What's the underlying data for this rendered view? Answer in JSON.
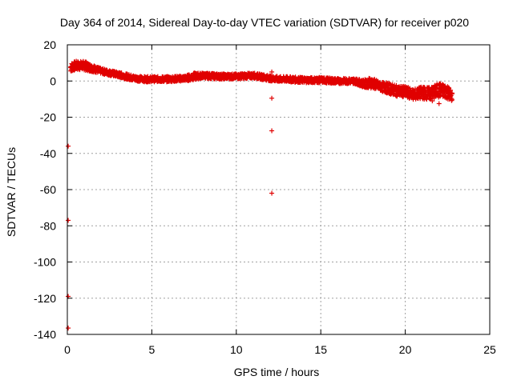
{
  "chart_data": {
    "type": "scatter",
    "title": "Day 364 of 2014, Sidereal Day-to-day VTEC variation (SDTVAR) for receiver p020",
    "xlabel": "GPS time / hours",
    "ylabel": "SDTVAR / TECUs",
    "xlim": [
      0,
      25
    ],
    "ylim": [
      -140,
      20
    ],
    "xticks": [
      0,
      5,
      10,
      15,
      20,
      25
    ],
    "yticks": [
      20,
      0,
      -20,
      -40,
      -60,
      -80,
      -100,
      -120,
      -140
    ],
    "grid": true,
    "series": [
      {
        "name": "SDTVAR",
        "color": "#e00000",
        "marker": "plus",
        "dense_trace": [
          [
            0.2,
            7.5
          ],
          [
            0.5,
            8.5
          ],
          [
            1.0,
            8.5
          ],
          [
            1.5,
            7.0
          ],
          [
            2.0,
            5.5
          ],
          [
            2.5,
            4.5
          ],
          [
            3.0,
            3.5
          ],
          [
            3.5,
            2.5
          ],
          [
            4.0,
            1.5
          ],
          [
            4.5,
            1.0
          ],
          [
            5.0,
            1.0
          ],
          [
            6.0,
            1.0
          ],
          [
            7.0,
            1.5
          ],
          [
            7.5,
            2.5
          ],
          [
            8.0,
            3.0
          ],
          [
            9.0,
            2.5
          ],
          [
            10.0,
            2.5
          ],
          [
            11.0,
            3.0
          ],
          [
            11.7,
            2.0
          ],
          [
            12.0,
            1.5
          ],
          [
            12.5,
            1.0
          ],
          [
            13.0,
            1.0
          ],
          [
            14.0,
            0.5
          ],
          [
            15.0,
            0.5
          ],
          [
            16.0,
            0.0
          ],
          [
            17.0,
            0.0
          ],
          [
            17.5,
            -1.5
          ],
          [
            18.0,
            -1.0
          ],
          [
            18.5,
            -3.0
          ],
          [
            19.0,
            -4.0
          ],
          [
            19.5,
            -5.5
          ],
          [
            20.0,
            -6.0
          ],
          [
            20.5,
            -7.5
          ],
          [
            21.0,
            -6.5
          ],
          [
            21.5,
            -7.0
          ],
          [
            22.0,
            -5.0
          ],
          [
            22.5,
            -6.0
          ],
          [
            22.8,
            -9.0
          ]
        ],
        "band_halfwidth": [
          2.5,
          2.5,
          2.5,
          2.0,
          1.5,
          1.5,
          1.5,
          1.5,
          1.5,
          1.5,
          1.5,
          1.5,
          1.5,
          2.0,
          1.5,
          1.5,
          1.5,
          1.5,
          1.5,
          1.5,
          1.5,
          1.5,
          1.5,
          1.5,
          1.5,
          1.5,
          2.0,
          3.0,
          2.5,
          3.0,
          3.0,
          3.0,
          3.0,
          3.5,
          3.5,
          4.0,
          4.0,
          2.5
        ],
        "isolated_points": [
          [
            12.1,
            5.0
          ],
          [
            12.1,
            -9.5
          ],
          [
            12.1,
            -27.5
          ],
          [
            12.1,
            -62.0
          ],
          [
            0.05,
            -36.0
          ],
          [
            0.05,
            -77.0
          ],
          [
            0.05,
            -119.0
          ],
          [
            0.05,
            -136.5
          ],
          [
            22.0,
            -12.5
          ],
          [
            21.6,
            -11.0
          ]
        ]
      }
    ]
  }
}
